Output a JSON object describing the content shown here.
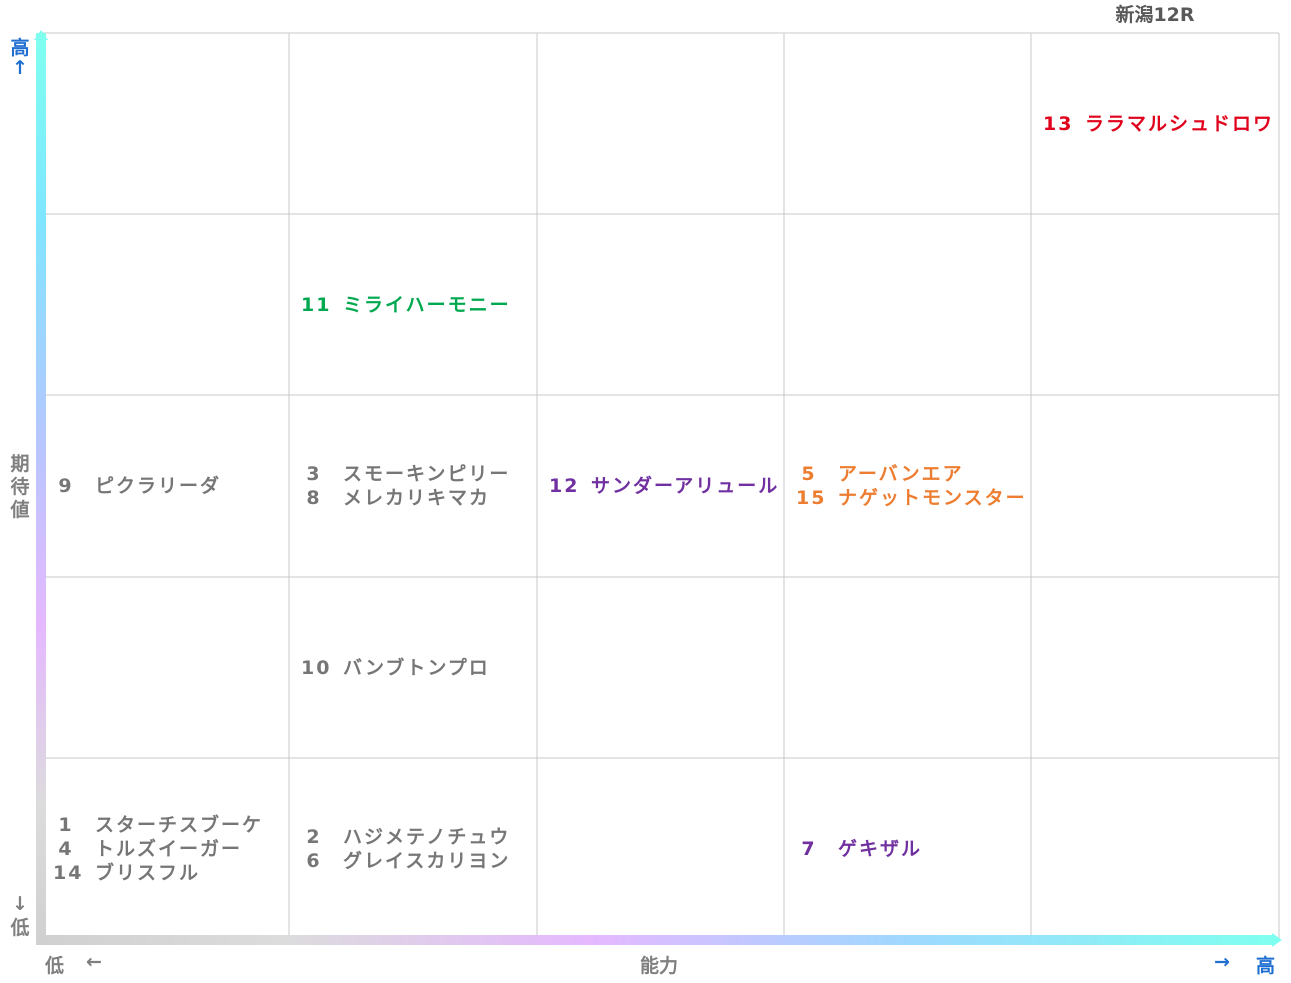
{
  "race": {
    "title": "新潟12R"
  },
  "axes": {
    "y": {
      "title": "期待値",
      "high": "高",
      "low": "低",
      "up_arrow": "↑",
      "down_arrow": "↓"
    },
    "x": {
      "title": "能力",
      "high": "高",
      "low": "低",
      "left_arrow": "←",
      "right_arrow": "→"
    }
  },
  "chart_data": {
    "type": "table",
    "columns": 5,
    "rows": 5,
    "colors": {
      "red": "#e0001b",
      "green": "#00a84f",
      "purple": "#7030a0",
      "orange": "#ed7d31",
      "gray": "#767676"
    },
    "cells": [
      {
        "x": 5,
        "y": 5,
        "color": "red",
        "horses": [
          {
            "num": "13",
            "name": "ララマルシュドロワ"
          }
        ]
      },
      {
        "x": 2,
        "y": 4,
        "color": "green",
        "horses": [
          {
            "num": "11",
            "name": "ミライハーモニー"
          }
        ]
      },
      {
        "x": 1,
        "y": 3,
        "color": "gray",
        "horses": [
          {
            "num": "9",
            "name": "ピクラリーダ"
          }
        ]
      },
      {
        "x": 2,
        "y": 3,
        "color": "gray",
        "horses": [
          {
            "num": "3",
            "name": "スモーキンピリー"
          },
          {
            "num": "8",
            "name": "メレカリキマカ"
          }
        ]
      },
      {
        "x": 3,
        "y": 3,
        "color": "purple",
        "horses": [
          {
            "num": "12",
            "name": "サンダーアリュール"
          }
        ]
      },
      {
        "x": 4,
        "y": 3,
        "color": "orange",
        "horses": [
          {
            "num": "5",
            "name": "アーバンエア"
          },
          {
            "num": "15",
            "name": "ナゲットモンスター"
          }
        ]
      },
      {
        "x": 2,
        "y": 2,
        "color": "gray",
        "horses": [
          {
            "num": "10",
            "name": "バンブトンプロ"
          }
        ]
      },
      {
        "x": 1,
        "y": 1,
        "color": "gray",
        "horses": [
          {
            "num": "1",
            "name": "スターチスブーケ"
          },
          {
            "num": "4",
            "name": "トルズイーガー"
          },
          {
            "num": "14",
            "name": "ブリスフル"
          }
        ]
      },
      {
        "x": 2,
        "y": 1,
        "color": "gray",
        "horses": [
          {
            "num": "2",
            "name": "ハジメテノチュウ"
          },
          {
            "num": "6",
            "name": "グレイスカリヨン"
          }
        ]
      },
      {
        "x": 4,
        "y": 1,
        "color": "purple",
        "horses": [
          {
            "num": "7",
            "name": "ゲキザル"
          }
        ]
      }
    ]
  }
}
